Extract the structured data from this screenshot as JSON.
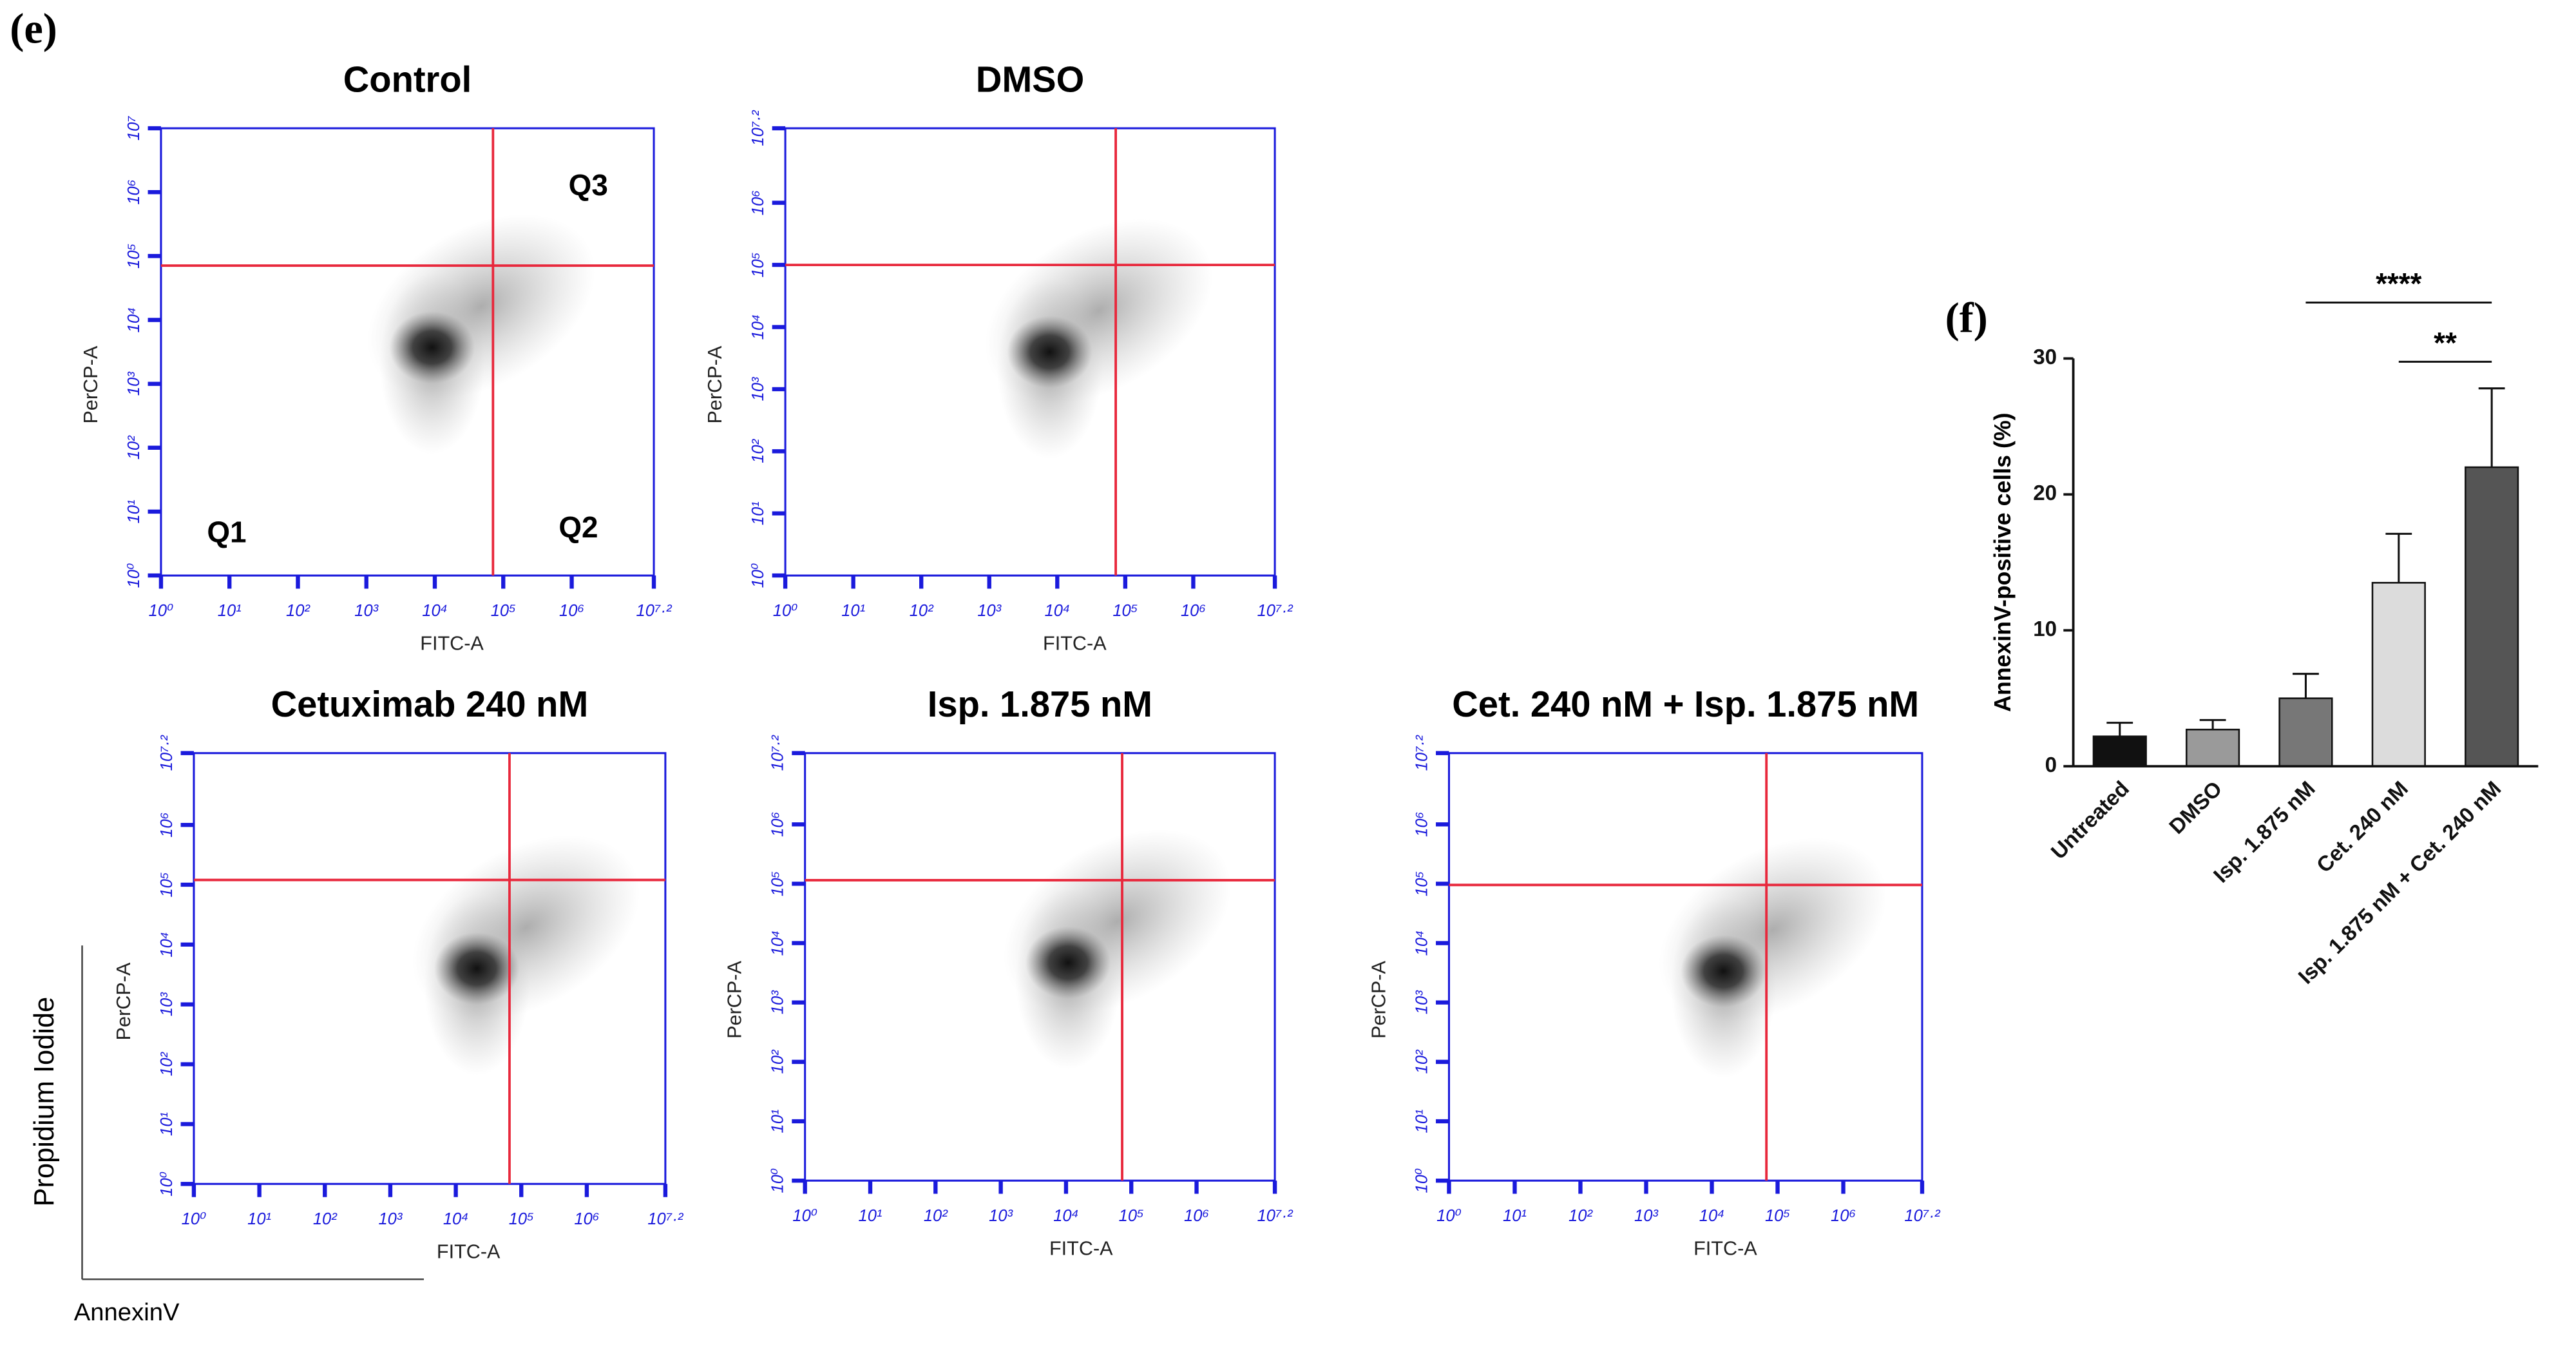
{
  "panel_label": "(e)",
  "axis_key": {
    "y": "Propidium Iodide",
    "x": "AnnexinV"
  },
  "chart_data": [
    {
      "type": "flow",
      "title": "Control",
      "xlabel": "FITC-A",
      "ylabel": "PerCP-A",
      "xlim": [
        0,
        7.2
      ],
      "ylim": [
        0,
        7
      ],
      "xticks": [
        {
          "value": 0,
          "label": "10⁰"
        },
        {
          "value": 1,
          "label": "10¹"
        },
        {
          "value": 2,
          "label": "10²"
        },
        {
          "value": 3,
          "label": "10³"
        },
        {
          "value": 4,
          "label": "10⁴"
        },
        {
          "value": 5,
          "label": "10⁵"
        },
        {
          "value": 6,
          "label": "10⁶"
        },
        {
          "value": 7.2,
          "label": "10⁷·²"
        }
      ],
      "yticks": [
        {
          "value": 0,
          "label": "10⁰"
        },
        {
          "value": 1,
          "label": "10¹"
        },
        {
          "value": 2,
          "label": "10²"
        },
        {
          "value": 3,
          "label": "10³"
        },
        {
          "value": 4,
          "label": "10⁴"
        },
        {
          "value": 5,
          "label": "10⁵"
        },
        {
          "value": 6,
          "label": "10⁶"
        },
        {
          "value": 7,
          "label": "10⁷"
        }
      ],
      "gate_x": 4.85,
      "gate_y": 4.85,
      "gate_color": "#e8283c",
      "frame_color": "#1a1adc",
      "quadrant_labels": [
        "Q1",
        "Q2",
        "Q3"
      ]
    },
    {
      "type": "flow",
      "title": "DMSO",
      "xlabel": "FITC-A",
      "ylabel": "PerCP-A",
      "xlim": [
        0,
        7.2
      ],
      "ylim": [
        0,
        7.2
      ],
      "xticks": [
        {
          "value": 0,
          "label": "10⁰"
        },
        {
          "value": 1,
          "label": "10¹"
        },
        {
          "value": 2,
          "label": "10²"
        },
        {
          "value": 3,
          "label": "10³"
        },
        {
          "value": 4,
          "label": "10⁴"
        },
        {
          "value": 5,
          "label": "10⁵"
        },
        {
          "value": 6,
          "label": "10⁶"
        },
        {
          "value": 7.2,
          "label": "10⁷·²"
        }
      ],
      "yticks": [
        {
          "value": 0,
          "label": "10⁰"
        },
        {
          "value": 1,
          "label": "10¹"
        },
        {
          "value": 2,
          "label": "10²"
        },
        {
          "value": 3,
          "label": "10³"
        },
        {
          "value": 4,
          "label": "10⁴"
        },
        {
          "value": 5,
          "label": "10⁵"
        },
        {
          "value": 6,
          "label": "10⁶"
        },
        {
          "value": 7.2,
          "label": "10⁷·²"
        }
      ],
      "gate_x": 4.86,
      "gate_y": 5.0,
      "gate_color": "#e8283c",
      "frame_color": "#1a1adc"
    },
    {
      "type": "flow",
      "title": "Cetuximab 240 nM",
      "xlabel": "FITC-A",
      "ylabel": "PerCP-A",
      "xlim": [
        0,
        7.2
      ],
      "ylim": [
        0,
        7.2
      ],
      "xticks": [
        {
          "value": 0,
          "label": "10⁰"
        },
        {
          "value": 1,
          "label": "10¹"
        },
        {
          "value": 2,
          "label": "10²"
        },
        {
          "value": 3,
          "label": "10³"
        },
        {
          "value": 4,
          "label": "10⁴"
        },
        {
          "value": 5,
          "label": "10⁵"
        },
        {
          "value": 6,
          "label": "10⁶"
        },
        {
          "value": 7.2,
          "label": "10⁷·²"
        }
      ],
      "yticks": [
        {
          "value": 0,
          "label": "10⁰"
        },
        {
          "value": 1,
          "label": "10¹"
        },
        {
          "value": 2,
          "label": "10²"
        },
        {
          "value": 3,
          "label": "10³"
        },
        {
          "value": 4,
          "label": "10⁴"
        },
        {
          "value": 5,
          "label": "10⁵"
        },
        {
          "value": 6,
          "label": "10⁶"
        },
        {
          "value": 7.2,
          "label": "10⁷·²"
        }
      ],
      "gate_x": 4.82,
      "gate_y": 5.08,
      "gate_color": "#e8283c",
      "frame_color": "#1a1adc"
    },
    {
      "type": "flow",
      "title": "Isp. 1.875 nM",
      "xlabel": "FITC-A",
      "ylabel": "PerCP-A",
      "xlim": [
        0,
        7.2
      ],
      "ylim": [
        0,
        7.2
      ],
      "xticks": [
        {
          "value": 0,
          "label": "10⁰"
        },
        {
          "value": 1,
          "label": "10¹"
        },
        {
          "value": 2,
          "label": "10²"
        },
        {
          "value": 3,
          "label": "10³"
        },
        {
          "value": 4,
          "label": "10⁴"
        },
        {
          "value": 5,
          "label": "10⁵"
        },
        {
          "value": 6,
          "label": "10⁶"
        },
        {
          "value": 7.2,
          "label": "10⁷·²"
        }
      ],
      "yticks": [
        {
          "value": 0,
          "label": "10⁰"
        },
        {
          "value": 1,
          "label": "10¹"
        },
        {
          "value": 2,
          "label": "10²"
        },
        {
          "value": 3,
          "label": "10³"
        },
        {
          "value": 4,
          "label": "10⁴"
        },
        {
          "value": 5,
          "label": "10⁵"
        },
        {
          "value": 6,
          "label": "10⁶"
        },
        {
          "value": 7.2,
          "label": "10⁷·²"
        }
      ],
      "gate_x": 4.86,
      "gate_y": 5.06,
      "gate_color": "#e8283c",
      "frame_color": "#1a1adc"
    },
    {
      "type": "flow",
      "title": "Cet. 240 nM + Isp. 1.875 nM",
      "xlabel": "FITC-A",
      "ylabel": "PerCP-A",
      "xlim": [
        0,
        7.2
      ],
      "ylim": [
        0,
        7.2
      ],
      "xticks": [
        {
          "value": 0,
          "label": "10⁰"
        },
        {
          "value": 1,
          "label": "10¹"
        },
        {
          "value": 2,
          "label": "10²"
        },
        {
          "value": 3,
          "label": "10³"
        },
        {
          "value": 4,
          "label": "10⁴"
        },
        {
          "value": 5,
          "label": "10⁵"
        },
        {
          "value": 6,
          "label": "10⁶"
        },
        {
          "value": 7.2,
          "label": "10⁷·²"
        }
      ],
      "yticks": [
        {
          "value": 0,
          "label": "10⁰"
        },
        {
          "value": 1,
          "label": "10¹"
        },
        {
          "value": 2,
          "label": "10²"
        },
        {
          "value": 3,
          "label": "10³"
        },
        {
          "value": 4,
          "label": "10⁴"
        },
        {
          "value": 5,
          "label": "10⁵"
        },
        {
          "value": 6,
          "label": "10⁶"
        },
        {
          "value": 7.2,
          "label": "10⁷·²"
        }
      ],
      "gate_x": 4.83,
      "gate_y": 4.98,
      "gate_color": "#e8283c",
      "frame_color": "#1a1adc"
    },
    {
      "type": "bar",
      "panel_label": "(f)",
      "ylabel": "AnnexinV-positive cells (%)",
      "categories": [
        "Untreated",
        "DMSO",
        "Isp. 1.875 nM",
        "Cet. 240 nM",
        "Isp. 1.875 nM + Cet. 240 nM"
      ],
      "values": [
        2.2,
        2.7,
        5.0,
        13.5,
        22.0
      ],
      "errors": [
        1.0,
        0.7,
        1.8,
        3.6,
        5.8
      ],
      "colors": [
        "#111111",
        "#9a9a9a",
        "#777777",
        "#dcdcdc",
        "#555555"
      ],
      "ylim": [
        0,
        30
      ],
      "yticks": [
        0,
        10,
        20,
        30
      ],
      "annotations": [
        {
          "text": "****",
          "from": 2,
          "to": 4
        },
        {
          "text": "**",
          "from": 3,
          "to": 4
        }
      ]
    }
  ]
}
